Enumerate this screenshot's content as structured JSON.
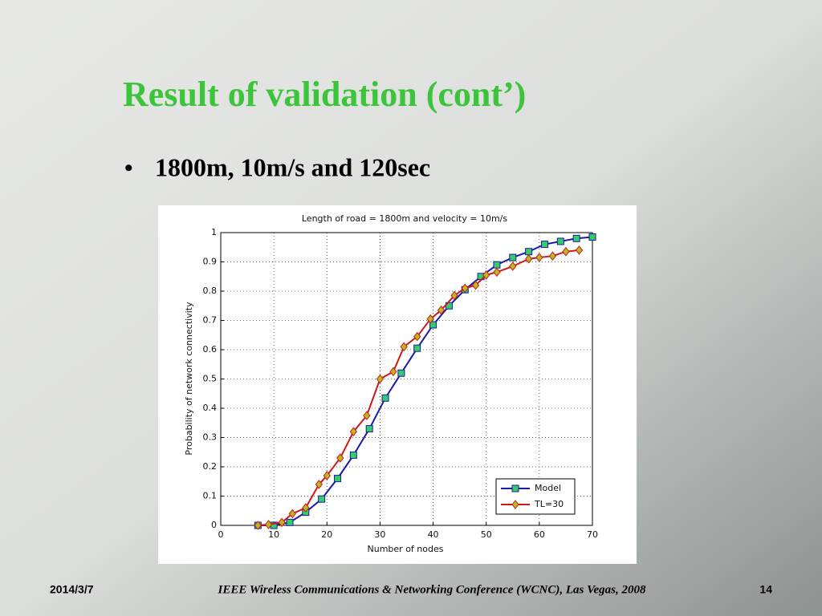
{
  "slide": {
    "title": "Result of validation (cont’)",
    "bullet": "1800m, 10m/s and 120sec"
  },
  "footer": {
    "date": "2014/3/7",
    "conference": "IEEE Wireless Communications & Networking Conference (WCNC), Las Vegas, 2008",
    "page": "14"
  },
  "chart_data": {
    "type": "line",
    "title": "Length of road = 1800m and velocity = 10m/s",
    "x_label": "Number of nodes",
    "y_label": "Probability of network connectivity",
    "xlim": [
      0,
      70
    ],
    "xticks": [
      0,
      10,
      20,
      30,
      40,
      50,
      60,
      70
    ],
    "ylim": [
      0,
      1
    ],
    "yticks": [
      0,
      0.1,
      0.2,
      0.3,
      0.4,
      0.5,
      0.6,
      0.7,
      0.8,
      0.9,
      1
    ],
    "grid": true,
    "legend": "lower right",
    "series": [
      {
        "name": "Model",
        "color": "#1a1aa8",
        "marker": "square",
        "marker_color": "#33cc66",
        "x": [
          7,
          10,
          13,
          16,
          19,
          22,
          25,
          28,
          31,
          34,
          37,
          40,
          43,
          46,
          49,
          52,
          55,
          58,
          61,
          64,
          67,
          70
        ],
        "values": [
          0,
          0,
          0.01,
          0.045,
          0.09,
          0.16,
          0.24,
          0.33,
          0.435,
          0.52,
          0.605,
          0.685,
          0.75,
          0.805,
          0.85,
          0.89,
          0.915,
          0.935,
          0.96,
          0.97,
          0.98,
          0.985
        ]
      },
      {
        "name": "TL=30",
        "color": "#cc1a1a",
        "marker": "diamond",
        "marker_color": "#b8b820",
        "x": [
          7,
          9,
          11.5,
          13.5,
          16,
          18.5,
          20,
          22.5,
          25,
          27.5,
          30,
          32.5,
          34.5,
          37,
          39.5,
          41.5,
          44,
          46,
          48,
          50,
          52,
          55,
          58,
          60,
          62.5,
          65,
          67.5
        ],
        "values": [
          0,
          0.003,
          0.01,
          0.04,
          0.06,
          0.14,
          0.17,
          0.23,
          0.32,
          0.375,
          0.5,
          0.525,
          0.61,
          0.645,
          0.705,
          0.735,
          0.785,
          0.81,
          0.82,
          0.855,
          0.865,
          0.885,
          0.91,
          0.915,
          0.92,
          0.935,
          0.94
        ]
      }
    ]
  }
}
